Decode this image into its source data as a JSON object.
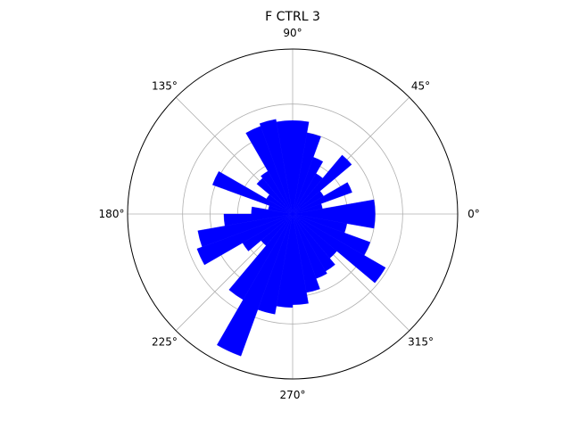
{
  "chart_data": {
    "type": "bar",
    "projection": "polar",
    "title": "F CTRL 3",
    "angle_ticks": [
      "0°",
      "45°",
      "90°",
      "135°",
      "180°",
      "225°",
      "270°",
      "315°"
    ],
    "radial_grid_values": [
      10,
      20,
      30,
      40
    ],
    "rlim": [
      0,
      60
    ],
    "grid": true,
    "bar_color": "#0000ff",
    "bin_width_deg": 10,
    "angles_deg": [
      5,
      15,
      25,
      35,
      45,
      55,
      65,
      75,
      85,
      95,
      105,
      115,
      125,
      135,
      145,
      155,
      165,
      175,
      185,
      195,
      205,
      215,
      225,
      235,
      245,
      255,
      265,
      275,
      285,
      295,
      305,
      315,
      325,
      335,
      345,
      355
    ],
    "values": [
      30,
      11,
      23,
      13,
      28,
      17,
      22,
      30,
      34,
      34,
      35,
      34,
      18,
      17,
      11,
      31,
      9,
      15,
      25,
      35,
      37,
      21,
      15,
      36,
      55,
      37,
      34,
      33,
      29,
      25,
      24,
      21,
      39,
      30,
      20,
      30
    ]
  }
}
